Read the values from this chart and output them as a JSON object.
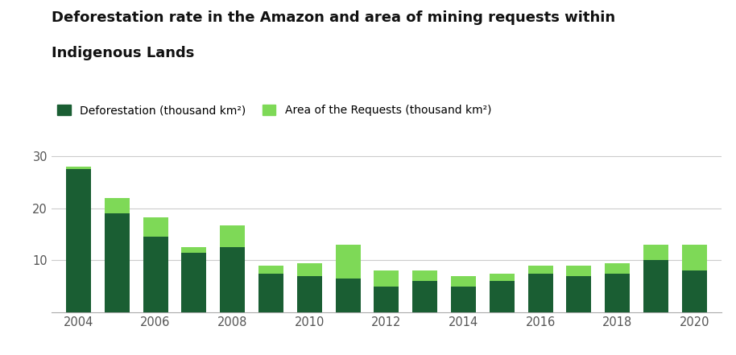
{
  "years": [
    2004,
    2005,
    2006,
    2007,
    2008,
    2009,
    2010,
    2011,
    2012,
    2013,
    2014,
    2015,
    2016,
    2017,
    2018,
    2019,
    2020
  ],
  "deforestation": [
    27.5,
    19.0,
    14.5,
    11.5,
    12.5,
    7.5,
    7.0,
    6.5,
    5.0,
    6.0,
    5.0,
    6.0,
    7.5,
    7.0,
    7.5,
    10.0,
    8.0
  ],
  "requests": [
    0.5,
    3.0,
    3.8,
    1.0,
    4.2,
    1.5,
    2.5,
    6.5,
    3.0,
    2.0,
    2.0,
    1.5,
    1.5,
    2.0,
    2.0,
    3.0,
    5.0
  ],
  "deforestation_color": "#1a5e33",
  "requests_color": "#7ed957",
  "background_color": "#ffffff",
  "grid_color": "#cccccc",
  "title_line1": "Deforestation rate in the Amazon and area of mining requests within",
  "title_line2": "Indigenous Lands",
  "legend_deforestation": "Deforestation (thousand km²)",
  "legend_requests": "Area of the Requests (thousand km²)",
  "yticks": [
    10,
    20,
    30
  ],
  "ylim": [
    0,
    32
  ],
  "bar_width": 0.65
}
